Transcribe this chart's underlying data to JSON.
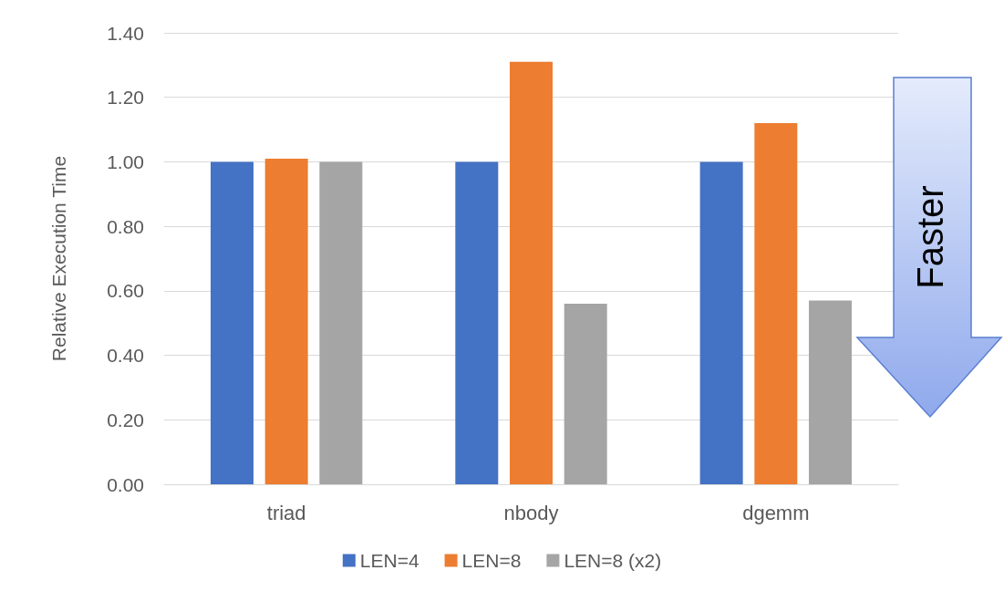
{
  "chart_data": {
    "type": "bar",
    "ylabel": "Relative Execution Time",
    "categories": [
      "triad",
      "nbody",
      "dgemm"
    ],
    "series": [
      {
        "name": "LEN=4",
        "color": "#4472c4",
        "values": [
          1.0,
          1.0,
          1.0
        ]
      },
      {
        "name": "LEN=8",
        "color": "#ed7d31",
        "values": [
          1.01,
          1.31,
          1.12
        ]
      },
      {
        "name": "LEN=8 (x2)",
        "color": "#a5a5a5",
        "values": [
          1.0,
          0.56,
          0.57
        ]
      }
    ],
    "ylim": [
      0,
      1.4
    ],
    "yticks": [
      {
        "value": 0,
        "label": "0.00"
      },
      {
        "value": 0.2,
        "label": "0.20"
      },
      {
        "value": 0.4,
        "label": "0.40"
      },
      {
        "value": 0.6,
        "label": "0.60"
      },
      {
        "value": 0.8,
        "label": "0.80"
      },
      {
        "value": 1,
        "label": "1.00"
      },
      {
        "value": 1.2,
        "label": "1.20"
      },
      {
        "value": 1.4,
        "label": "1.40"
      }
    ],
    "grid": "y",
    "legend": "bottom",
    "annotations": [
      "Faster"
    ]
  }
}
